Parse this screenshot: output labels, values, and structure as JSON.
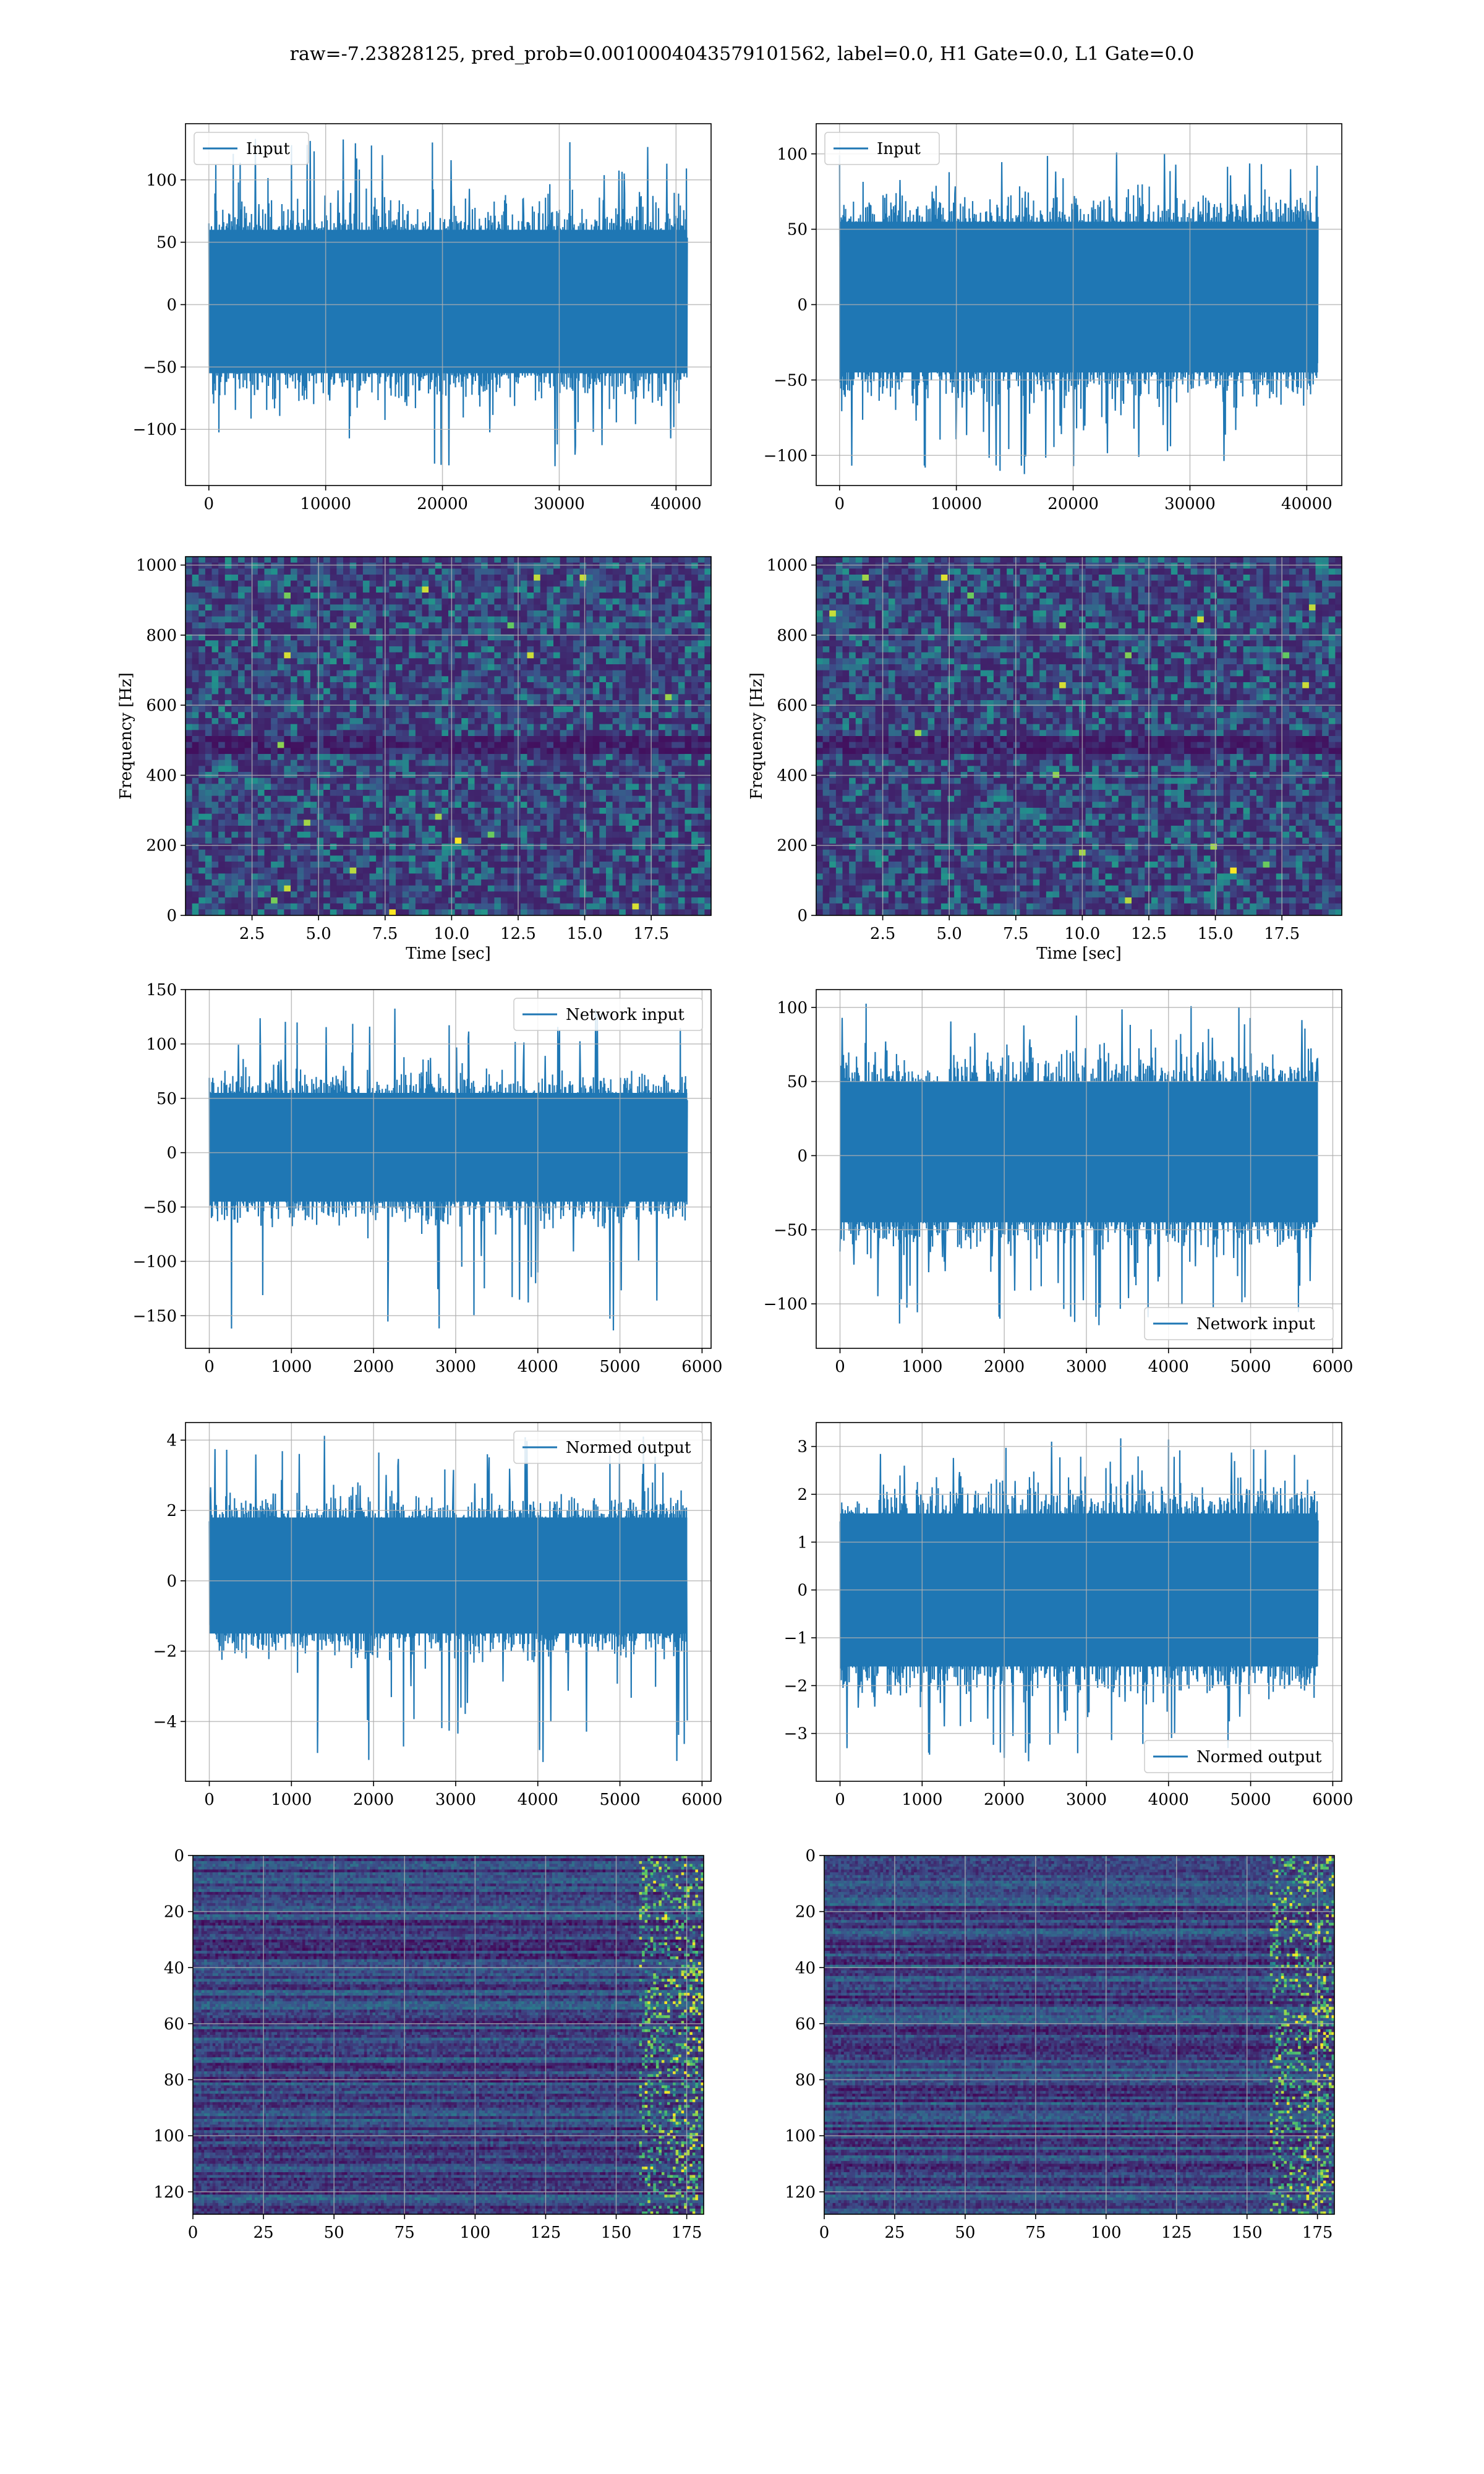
{
  "suptitle": "raw=-7.23828125, pred_prob=0.0010004043579101562, label=0.0, H1 Gate=0.0, L1 Gate=0.0",
  "colors": {
    "line": "#1f77b4",
    "grid": "#b0b0b0",
    "viridis_dark": "#440154",
    "viridis_mid": "#3b528b",
    "viridis_teal": "#21918c",
    "viridis_green": "#5ec962",
    "viridis_yellow": "#fde725"
  },
  "chart_data": [
    {
      "id": "input-h1",
      "type": "line",
      "legend": "Input",
      "legend_loc": "upper-left",
      "xlim": [
        -2000,
        43000
      ],
      "ylim": [
        -145,
        145
      ],
      "xticks": [
        0,
        10000,
        20000,
        30000,
        40000
      ],
      "yticks": [
        -100,
        -50,
        0,
        50,
        100
      ],
      "x_range": [
        0,
        40960
      ],
      "band": [
        -55,
        60
      ],
      "extremes": [
        -130,
        133
      ],
      "grid": true
    },
    {
      "id": "input-l1",
      "type": "line",
      "legend": "Input",
      "legend_loc": "upper-left",
      "xlim": [
        -2000,
        43000
      ],
      "ylim": [
        -120,
        120
      ],
      "xticks": [
        0,
        10000,
        20000,
        30000,
        40000
      ],
      "yticks": [
        -100,
        -50,
        0,
        50,
        100
      ],
      "x_range": [
        0,
        40960
      ],
      "band": [
        -45,
        55
      ],
      "extremes": [
        -113,
        105
      ],
      "grid": true
    },
    {
      "id": "spectrogram-h1",
      "type": "heatmap",
      "xlabel": "Time [sec]",
      "ylabel": "Frequency [Hz]",
      "xlim": [
        0,
        19.75
      ],
      "ylim": [
        0,
        1024
      ],
      "xticks": [
        2.5,
        5.0,
        7.5,
        10.0,
        12.5,
        15.0,
        17.5
      ],
      "yticks": [
        0,
        200,
        400,
        600,
        800,
        1000
      ],
      "grid": true
    },
    {
      "id": "spectrogram-l1",
      "type": "heatmap",
      "xlabel": "Time [sec]",
      "ylabel": "Frequency [Hz]",
      "xlim": [
        0,
        19.75
      ],
      "ylim": [
        0,
        1024
      ],
      "xticks": [
        2.5,
        5.0,
        7.5,
        10.0,
        12.5,
        15.0,
        17.5
      ],
      "yticks": [
        0,
        200,
        400,
        600,
        800,
        1000
      ],
      "grid": true
    },
    {
      "id": "network-input-h1",
      "type": "line",
      "legend": "Network input",
      "legend_loc": "upper-right",
      "xlim": [
        -290,
        6110
      ],
      "ylim": [
        -180,
        150
      ],
      "xticks": [
        0,
        1000,
        2000,
        3000,
        4000,
        5000,
        6000
      ],
      "yticks": [
        -150,
        -100,
        -50,
        0,
        50,
        100,
        150
      ],
      "x_range": [
        0,
        5820
      ],
      "band": [
        -45,
        55
      ],
      "extremes": [
        -165,
        135
      ],
      "grid": true
    },
    {
      "id": "network-input-l1",
      "type": "line",
      "legend": "Network input",
      "legend_loc": "lower-right",
      "xlim": [
        -290,
        6110
      ],
      "ylim": [
        -130,
        112
      ],
      "xticks": [
        0,
        1000,
        2000,
        3000,
        4000,
        5000,
        6000
      ],
      "yticks": [
        -100,
        -50,
        0,
        50,
        100
      ],
      "x_range": [
        0,
        5820
      ],
      "band": [
        -45,
        50
      ],
      "extremes": [
        -115,
        105
      ],
      "grid": true
    },
    {
      "id": "normed-output-h1",
      "type": "line",
      "legend": "Normed output",
      "legend_loc": "upper-right",
      "xlim": [
        -290,
        6110
      ],
      "ylim": [
        -5.7,
        4.5
      ],
      "xticks": [
        0,
        1000,
        2000,
        3000,
        4000,
        5000,
        6000
      ],
      "yticks": [
        -4,
        -2,
        0,
        2,
        4
      ],
      "x_range": [
        0,
        5820
      ],
      "band": [
        -1.5,
        1.8
      ],
      "extremes": [
        -5.2,
        4.2
      ],
      "grid": true
    },
    {
      "id": "normed-output-l1",
      "type": "line",
      "legend": "Normed output",
      "legend_loc": "lower-right",
      "xlim": [
        -290,
        6110
      ],
      "ylim": [
        -4.0,
        3.5
      ],
      "xticks": [
        0,
        1000,
        2000,
        3000,
        4000,
        5000,
        6000
      ],
      "yticks": [
        -3,
        -2,
        -1,
        0,
        1,
        2,
        3
      ],
      "x_range": [
        0,
        5820
      ],
      "band": [
        -1.6,
        1.6
      ],
      "extremes": [
        -3.6,
        3.3
      ],
      "grid": true
    },
    {
      "id": "feature-map-h1",
      "type": "heatmap",
      "xlim": [
        0,
        181
      ],
      "ylim": [
        128,
        0
      ],
      "xticks": [
        0,
        25,
        50,
        75,
        100,
        125,
        150,
        175
      ],
      "yticks": [
        0,
        20,
        40,
        60,
        80,
        100,
        120
      ],
      "grid": true
    },
    {
      "id": "feature-map-l1",
      "type": "heatmap",
      "xlim": [
        0,
        181
      ],
      "ylim": [
        128,
        0
      ],
      "xticks": [
        0,
        25,
        50,
        75,
        100,
        125,
        150,
        175
      ],
      "yticks": [
        0,
        20,
        40,
        60,
        80,
        100,
        120
      ],
      "grid": true
    }
  ]
}
